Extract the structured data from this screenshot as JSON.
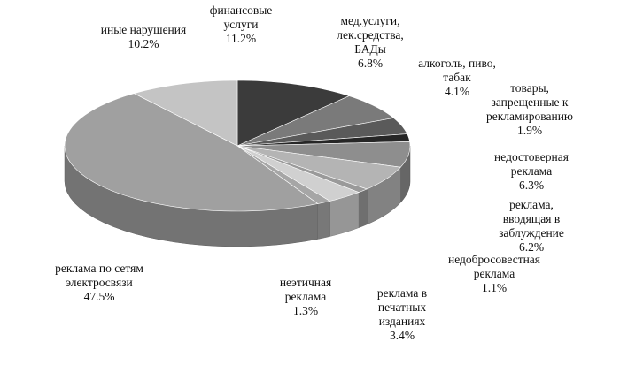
{
  "chart_data": {
    "type": "pie",
    "style": "3d",
    "title": "",
    "legend": "none",
    "slices": [
      {
        "label_lines": [
          "финансовые",
          "услуги"
        ],
        "value_text": "11.2%",
        "value": 11.2,
        "color": "#3b3b3b"
      },
      {
        "label_lines": [
          "мед.услуги,",
          "лек.средства,",
          "БАДы"
        ],
        "value_text": "6.8%",
        "value": 6.8,
        "color": "#7a7a7a"
      },
      {
        "label_lines": [
          "алкоголь, пиво,",
          "табак"
        ],
        "value_text": "4.1%",
        "value": 4.1,
        "color": "#5a5a5a"
      },
      {
        "label_lines": [
          "товары,",
          "запрещенные к",
          "рекламированию"
        ],
        "value_text": "1.9%",
        "value": 1.9,
        "color": "#262626"
      },
      {
        "label_lines": [
          "недостоверная",
          "реклама"
        ],
        "value_text": "6.3%",
        "value": 6.3,
        "color": "#8e8e8e"
      },
      {
        "label_lines": [
          "реклама,",
          "вводящая в",
          "заблуждение"
        ],
        "value_text": "6.2%",
        "value": 6.2,
        "color": "#b4b4b4"
      },
      {
        "label_lines": [
          "недобросовестная",
          "реклама"
        ],
        "value_text": "1.1%",
        "value": 1.1,
        "color": "#9a9a9a"
      },
      {
        "label_lines": [
          "реклама в",
          "печатных",
          "изданиях"
        ],
        "value_text": "3.4%",
        "value": 3.4,
        "color": "#d0d0d0"
      },
      {
        "label_lines": [
          "неэтичная",
          "реклама"
        ],
        "value_text": "1.3%",
        "value": 1.3,
        "color": "#a6a6a6"
      },
      {
        "label_lines": [
          "реклама по сетям",
          "электросвязи"
        ],
        "value_text": "47.5%",
        "value": 47.5,
        "color": "#a0a0a0"
      },
      {
        "label_lines": [
          "иные нарушения"
        ],
        "value_text": "10.2%",
        "value": 10.2,
        "color": "#c4c4c4"
      }
    ]
  }
}
